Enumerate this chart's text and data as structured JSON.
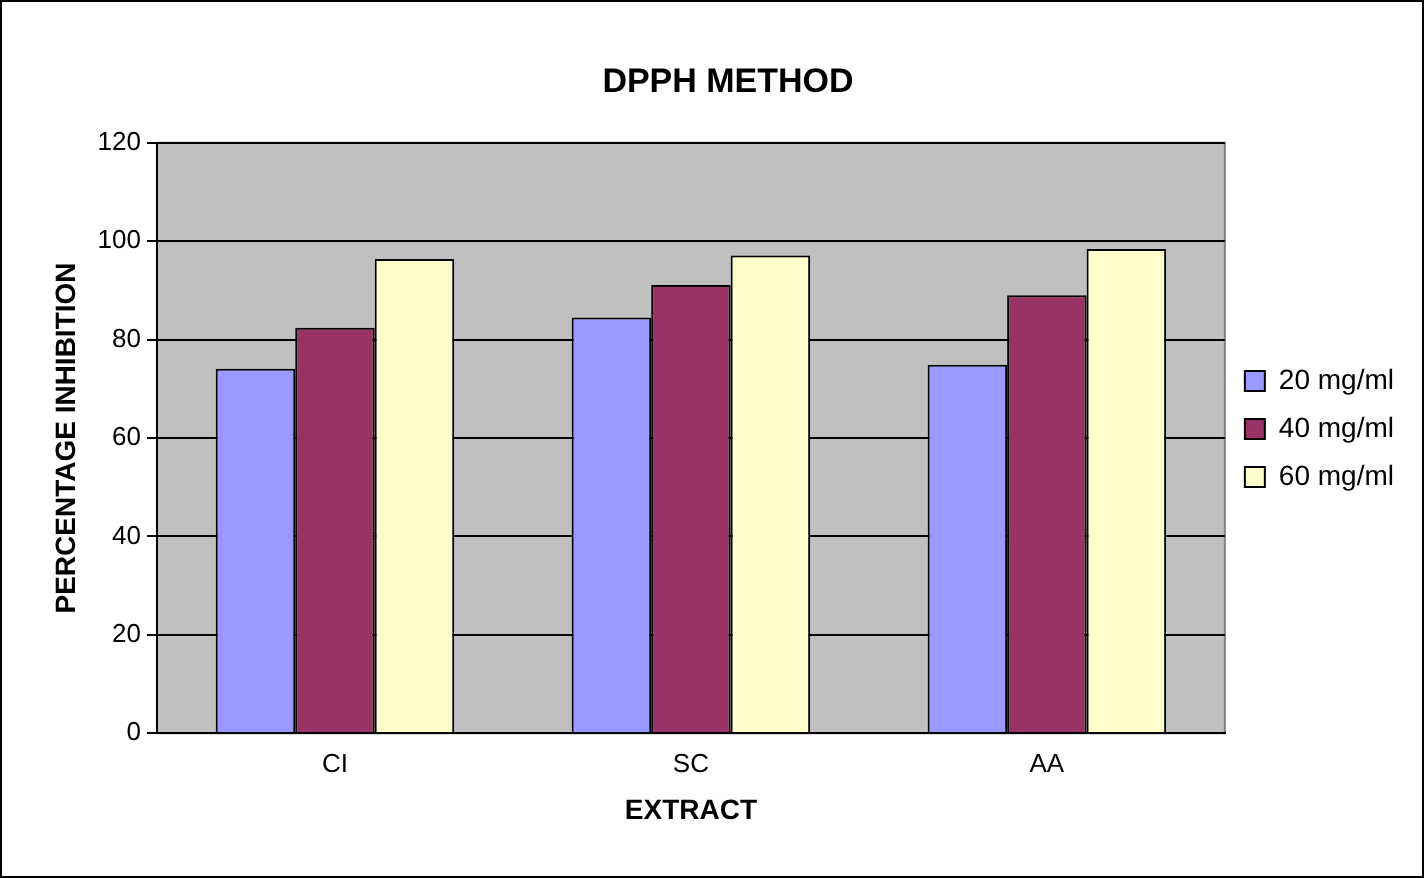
{
  "chart_data": {
    "type": "bar",
    "title": "DPPH METHOD",
    "xlabel": "EXTRACT",
    "ylabel": "PERCENTAGE INHIBITION",
    "categories": [
      "CI",
      "SC",
      "AA"
    ],
    "series": [
      {
        "name": "20 mg/ml",
        "color": "#9999ff",
        "values": [
          74.1,
          84.5,
          74.9
        ]
      },
      {
        "name": "40 mg/ml",
        "color": "#993366",
        "values": [
          82.4,
          91.1,
          89
        ]
      },
      {
        "name": "60 mg/ml",
        "color": "#ffffcc",
        "values": [
          96.4,
          97.1,
          98.4
        ]
      }
    ],
    "ylim": [
      0,
      120
    ],
    "yticks": [
      0,
      20,
      40,
      60,
      80,
      100,
      120
    ],
    "grid": "y",
    "legend": "right"
  }
}
